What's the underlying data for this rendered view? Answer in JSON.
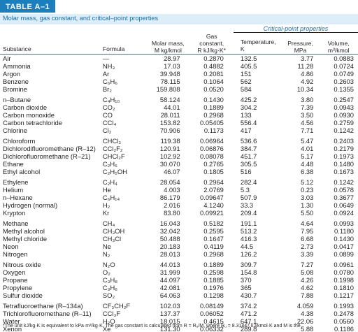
{
  "table_label": "TABLE A–1",
  "caption": "Molar mass, gas constant, and critical–point properties",
  "headers": {
    "critical_group": "Critical-point properties",
    "substance": "Substance",
    "formula": "Formula",
    "molar_mass_l1": "Molar mass,",
    "molar_mass_l2": "M kg/kmol",
    "gas_l1": "Gas",
    "gas_l2": "constant,",
    "gas_l3": "R kJ/kg·K*",
    "temp_l1": "Temperature,",
    "temp_l2": "K",
    "pres_l1": "Pressure,",
    "pres_l2": "MPa",
    "vol_l1": "Volume,",
    "vol_l2": "m³/kmol"
  },
  "rows": [
    {
      "substance": "Air",
      "formula": "—",
      "molar_mass": "28.97",
      "gas_constant": "0.2870",
      "temperature": "132.5",
      "pressure": "3.77",
      "volume": "0.0883"
    },
    {
      "substance": "Ammonia",
      "formula": "NH₃",
      "molar_mass": "17.03",
      "gas_constant": "0.4882",
      "temperature": "405.5",
      "pressure": "11.28",
      "volume": "0.0724"
    },
    {
      "substance": "Argon",
      "formula": "Ar",
      "molar_mass": "39.948",
      "gas_constant": "0.2081",
      "temperature": "151",
      "pressure": "4.86",
      "volume": "0.0749"
    },
    {
      "substance": "Benzene",
      "formula": "C₆H₆",
      "molar_mass": "78.115",
      "gas_constant": "0.1064",
      "temperature": "562",
      "pressure": "4.92",
      "volume": "0.2603"
    },
    {
      "substance": "Bromine",
      "formula": "Br₂",
      "molar_mass": "159.808",
      "gas_constant": "0.0520",
      "temperature": "584",
      "pressure": "10.34",
      "volume": "0.1355"
    },
    {
      "substance": "n–Butane",
      "formula": "C₄H₁₀",
      "molar_mass": "58.124",
      "gas_constant": "0.1430",
      "temperature": "425.2",
      "pressure": "3.80",
      "volume": "0.2547"
    },
    {
      "substance": "Carbon dioxide",
      "formula": "CO₂",
      "molar_mass": "44.01",
      "gas_constant": "0.1889",
      "temperature": "304.2",
      "pressure": "7.39",
      "volume": "0.0943"
    },
    {
      "substance": "Carbon monoxide",
      "formula": "CO",
      "molar_mass": "28.011",
      "gas_constant": "0.2968",
      "temperature": "133",
      "pressure": "3.50",
      "volume": "0.0930"
    },
    {
      "substance": "Carbon tetrachloride",
      "formula": "CCl₄",
      "molar_mass": "153.82",
      "gas_constant": "0.05405",
      "temperature": "556.4",
      "pressure": "4.56",
      "volume": "0.2759"
    },
    {
      "substance": "Chlorine",
      "formula": "Cl₂",
      "molar_mass": "70.906",
      "gas_constant": "0.1173",
      "temperature": "417",
      "pressure": "7.71",
      "volume": "0.1242"
    },
    {
      "substance": "Chloroform",
      "formula": "CHCl₃",
      "molar_mass": "119.38",
      "gas_constant": "0.06964",
      "temperature": "536.6",
      "pressure": "5.47",
      "volume": "0.2403"
    },
    {
      "substance": "Dichlorodifluoromethane (R–12)",
      "formula": "CCl₂F₂",
      "molar_mass": "120.91",
      "gas_constant": "0.06876",
      "temperature": "384.7",
      "pressure": "4.01",
      "volume": "0.2179"
    },
    {
      "substance": "Dichlorofluoromethane (R–21)",
      "formula": "CHCl₂F",
      "molar_mass": "102.92",
      "gas_constant": "0.08078",
      "temperature": "451.7",
      "pressure": "5.17",
      "volume": "0.1973"
    },
    {
      "substance": "Ethane",
      "formula": "C₂H₆",
      "molar_mass": "30.070",
      "gas_constant": "0.2765",
      "temperature": "305.5",
      "pressure": "4.48",
      "volume": "0.1480"
    },
    {
      "substance": "Ethyl alcohol",
      "formula": "C₂H₅OH",
      "molar_mass": "46.07",
      "gas_constant": "0.1805",
      "temperature": "516",
      "pressure": "6.38",
      "volume": "0.1673"
    },
    {
      "substance": "Ethylene",
      "formula": "C₂H₄",
      "molar_mass": "28.054",
      "gas_constant": "0.2964",
      "temperature": "282.4",
      "pressure": "5.12",
      "volume": "0.1242"
    },
    {
      "substance": "Helium",
      "formula": "He",
      "molar_mass": "4.003",
      "gas_constant": "2.0769",
      "temperature": "5.3",
      "pressure": "0.23",
      "volume": "0.0578"
    },
    {
      "substance": "n–Hexane",
      "formula": "C₆H₁₄",
      "molar_mass": "86.179",
      "gas_constant": "0.09647",
      "temperature": "507.9",
      "pressure": "3.03",
      "volume": "0.3677"
    },
    {
      "substance": "Hydrogen (normal)",
      "formula": "H₂",
      "molar_mass": "2.016",
      "gas_constant": "4.1240",
      "temperature": "33.3",
      "pressure": "1.30",
      "volume": "0.0649"
    },
    {
      "substance": "Krypton",
      "formula": "Kr",
      "molar_mass": "83.80",
      "gas_constant": "0.09921",
      "temperature": "209.4",
      "pressure": "5.50",
      "volume": "0.0924"
    },
    {
      "substance": "Methane",
      "formula": "CH₄",
      "molar_mass": "16.043",
      "gas_constant": "0.5182",
      "temperature": "191.1",
      "pressure": "4.64",
      "volume": "0.0993"
    },
    {
      "substance": "Methyl alcohol",
      "formula": "CH₃OH",
      "molar_mass": "32.042",
      "gas_constant": "0.2595",
      "temperature": "513.2",
      "pressure": "7.95",
      "volume": "0.1180"
    },
    {
      "substance": "Methyl chloride",
      "formula": "CH₃Cl",
      "molar_mass": "50.488",
      "gas_constant": "0.1647",
      "temperature": "416.3",
      "pressure": "6.68",
      "volume": "0.1430"
    },
    {
      "substance": "Neon",
      "formula": "Ne",
      "molar_mass": "20.183",
      "gas_constant": "0.4119",
      "temperature": "44.5",
      "pressure": "2.73",
      "volume": "0.0417"
    },
    {
      "substance": "Nitrogen",
      "formula": "N₂",
      "molar_mass": "28.013",
      "gas_constant": "0.2968",
      "temperature": "126.2",
      "pressure": "3.39",
      "volume": "0.0899"
    },
    {
      "substance": "Nitrous oxide",
      "formula": "N₂O",
      "molar_mass": "44.013",
      "gas_constant": "0.1889",
      "temperature": "309.7",
      "pressure": "7.27",
      "volume": "0.0961"
    },
    {
      "substance": "Oxygen",
      "formula": "O₂",
      "molar_mass": "31.999",
      "gas_constant": "0.2598",
      "temperature": "154.8",
      "pressure": "5.08",
      "volume": "0.0780"
    },
    {
      "substance": "Propane",
      "formula": "C₃H₈",
      "molar_mass": "44.097",
      "gas_constant": "0.1885",
      "temperature": "370",
      "pressure": "4.26",
      "volume": "0.1998"
    },
    {
      "substance": "Propylene",
      "formula": "C₃H₆",
      "molar_mass": "42.081",
      "gas_constant": "0.1976",
      "temperature": "365",
      "pressure": "4.62",
      "volume": "0.1810"
    },
    {
      "substance": "Sulfur dioxide",
      "formula": "SO₂",
      "molar_mass": "64.063",
      "gas_constant": "0.1298",
      "temperature": "430.7",
      "pressure": "7.88",
      "volume": "0.1217"
    },
    {
      "substance": "Tetrafluoroethane (R–134a)",
      "formula": "CF₃CH₂F",
      "molar_mass": "102.03",
      "gas_constant": "0.08149",
      "temperature": "374.2",
      "pressure": "4.059",
      "volume": "0.1993"
    },
    {
      "substance": "Trichlorofluoromethane (R–11)",
      "formula": "CCl₃F",
      "molar_mass": "137.37",
      "gas_constant": "0.06052",
      "temperature": "471.2",
      "pressure": "4.38",
      "volume": "0.2478"
    },
    {
      "substance": "Water",
      "formula": "H₂O",
      "molar_mass": "18.015",
      "gas_constant": "0.4615",
      "temperature": "647.1",
      "pressure": "22.06",
      "volume": "0.0560"
    },
    {
      "substance": "Xenon",
      "formula": "Xe",
      "molar_mass": "131.30",
      "gas_constant": "0.06332",
      "temperature": "289.8",
      "pressure": "5.88",
      "volume": "0.1186"
    }
  ],
  "footnote": "*The unit kJ/kg·K is equivalent to kPa·m³/kg·K. The gas constant is calculated from R = Rᵤ/M, where Rᵤ = 8.31447 kJ/kmol·K and M is the"
}
